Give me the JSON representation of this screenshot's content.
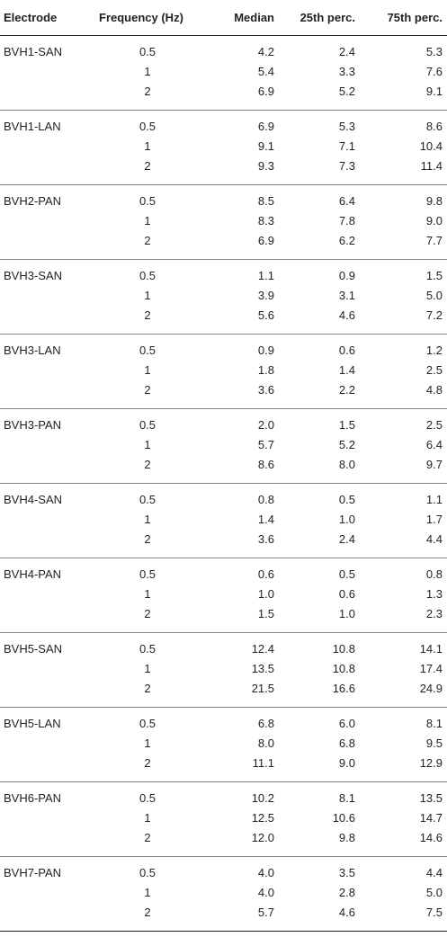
{
  "headers": [
    "Electrode",
    "Frequency (Hz)",
    "Median",
    "25th perc.",
    "75th perc."
  ],
  "groups": [
    {
      "electrode": "BVH1-SAN",
      "rows": [
        [
          "0.5",
          "4.2",
          "2.4",
          "5.3"
        ],
        [
          "1",
          "5.4",
          "3.3",
          "7.6"
        ],
        [
          "2",
          "6.9",
          "5.2",
          "9.1"
        ]
      ]
    },
    {
      "electrode": "BVH1-LAN",
      "rows": [
        [
          "0.5",
          "6.9",
          "5.3",
          "8.6"
        ],
        [
          "1",
          "9.1",
          "7.1",
          "10.4"
        ],
        [
          "2",
          "9.3",
          "7.3",
          "11.4"
        ]
      ]
    },
    {
      "electrode": "BVH2-PAN",
      "rows": [
        [
          "0.5",
          "8.5",
          "6.4",
          "9.8"
        ],
        [
          "1",
          "8.3",
          "7.8",
          "9.0"
        ],
        [
          "2",
          "6.9",
          "6.2",
          "7.7"
        ]
      ]
    },
    {
      "electrode": "BVH3-SAN",
      "rows": [
        [
          "0.5",
          "1.1",
          "0.9",
          "1.5"
        ],
        [
          "1",
          "3.9",
          "3.1",
          "5.0"
        ],
        [
          "2",
          "5.6",
          "4.6",
          "7.2"
        ]
      ]
    },
    {
      "electrode": "BVH3-LAN",
      "rows": [
        [
          "0.5",
          "0.9",
          "0.6",
          "1.2"
        ],
        [
          "1",
          "1.8",
          "1.4",
          "2.5"
        ],
        [
          "2",
          "3.6",
          "2.2",
          "4.8"
        ]
      ]
    },
    {
      "electrode": "BVH3-PAN",
      "rows": [
        [
          "0.5",
          "2.0",
          "1.5",
          "2.5"
        ],
        [
          "1",
          "5.7",
          "5.2",
          "6.4"
        ],
        [
          "2",
          "8.6",
          "8.0",
          "9.7"
        ]
      ]
    },
    {
      "electrode": "BVH4-SAN",
      "rows": [
        [
          "0.5",
          "0.8",
          "0.5",
          "1.1"
        ],
        [
          "1",
          "1.4",
          "1.0",
          "1.7"
        ],
        [
          "2",
          "3.6",
          "2.4",
          "4.4"
        ]
      ]
    },
    {
      "electrode": "BVH4-PAN",
      "rows": [
        [
          "0.5",
          "0.6",
          "0.5",
          "0.8"
        ],
        [
          "1",
          "1.0",
          "0.6",
          "1.3"
        ],
        [
          "2",
          "1.5",
          "1.0",
          "2.3"
        ]
      ]
    },
    {
      "electrode": "BVH5-SAN",
      "rows": [
        [
          "0.5",
          "12.4",
          "10.8",
          "14.1"
        ],
        [
          "1",
          "13.5",
          "10.8",
          "17.4"
        ],
        [
          "2",
          "21.5",
          "16.6",
          "24.9"
        ]
      ]
    },
    {
      "electrode": "BVH5-LAN",
      "rows": [
        [
          "0.5",
          "6.8",
          "6.0",
          "8.1"
        ],
        [
          "1",
          "8.0",
          "6.8",
          "9.5"
        ],
        [
          "2",
          "11.1",
          "9.0",
          "12.9"
        ]
      ]
    },
    {
      "electrode": "BVH6-PAN",
      "rows": [
        [
          "0.5",
          "10.2",
          "8.1",
          "13.5"
        ],
        [
          "1",
          "12.5",
          "10.6",
          "14.7"
        ],
        [
          "2",
          "12.0",
          "9.8",
          "14.6"
        ]
      ]
    },
    {
      "electrode": "BVH7-PAN",
      "rows": [
        [
          "0.5",
          "4.0",
          "3.5",
          "4.4"
        ],
        [
          "1",
          "4.0",
          "2.8",
          "5.0"
        ],
        [
          "2",
          "5.7",
          "4.6",
          "7.5"
        ]
      ]
    }
  ]
}
